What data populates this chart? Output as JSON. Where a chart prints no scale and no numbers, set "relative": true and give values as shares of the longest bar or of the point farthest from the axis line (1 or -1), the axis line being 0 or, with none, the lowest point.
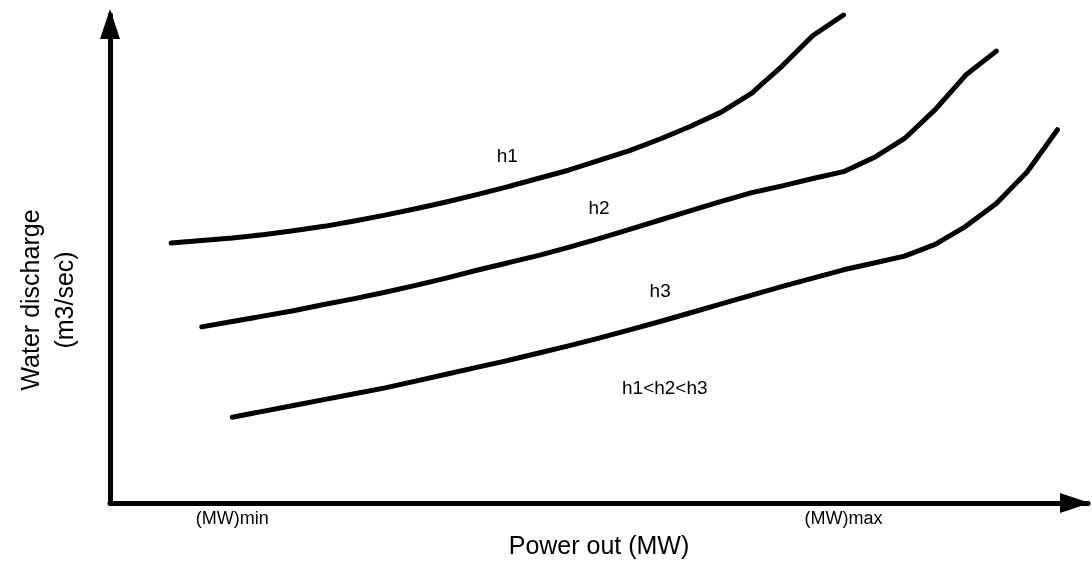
{
  "chart_data": {
    "type": "line",
    "relative": true,
    "xlabel": "Power out (MW)",
    "ylabel": "Water discharge\n(m3/sec)",
    "marker": "none",
    "line_style": "solid",
    "annotations": [
      "h1<h2<h3"
    ],
    "categories": [
      null,
      null,
      null,
      null,
      "(MW)min",
      null,
      null,
      null,
      null,
      null,
      null,
      null,
      null,
      null,
      null,
      null,
      null,
      null,
      null,
      null,
      null,
      null,
      null,
      null,
      "(MW)max",
      null,
      null,
      null,
      null,
      null,
      null,
      null,
      null
    ],
    "series": [
      {
        "name": "h1",
        "color": "#000000",
        "values": [
          null,
          null,
          0.533,
          0.538,
          0.543,
          0.55,
          0.558,
          0.567,
          0.578,
          0.59,
          0.603,
          0.617,
          0.632,
          0.648,
          0.665,
          0.682,
          0.702,
          0.722,
          0.746,
          0.772,
          0.801,
          0.84,
          0.896,
          0.958,
          1.0,
          null,
          null,
          null,
          null,
          null,
          null,
          null,
          null
        ]
      },
      {
        "name": "h2",
        "color": "#000000",
        "values": [
          null,
          null,
          null,
          0.361,
          0.372,
          0.383,
          0.394,
          0.407,
          0.419,
          0.432,
          0.446,
          0.461,
          0.477,
          0.492,
          0.507,
          0.524,
          0.542,
          0.561,
          0.58,
          0.599,
          0.618,
          0.636,
          0.65,
          0.665,
          0.679,
          0.708,
          0.747,
          0.806,
          0.877,
          0.926,
          null,
          null,
          null
        ]
      },
      {
        "name": "h3",
        "color": "#000000",
        "values": [
          null,
          null,
          null,
          null,
          0.176,
          0.188,
          0.2,
          0.212,
          0.224,
          0.236,
          0.25,
          0.264,
          0.278,
          0.292,
          0.307,
          0.322,
          0.338,
          0.355,
          0.372,
          0.39,
          0.408,
          0.426,
          0.444,
          0.461,
          0.478,
          0.492,
          0.506,
          0.53,
          0.567,
          0.614,
          0.678,
          0.765,
          null
        ]
      }
    ]
  }
}
